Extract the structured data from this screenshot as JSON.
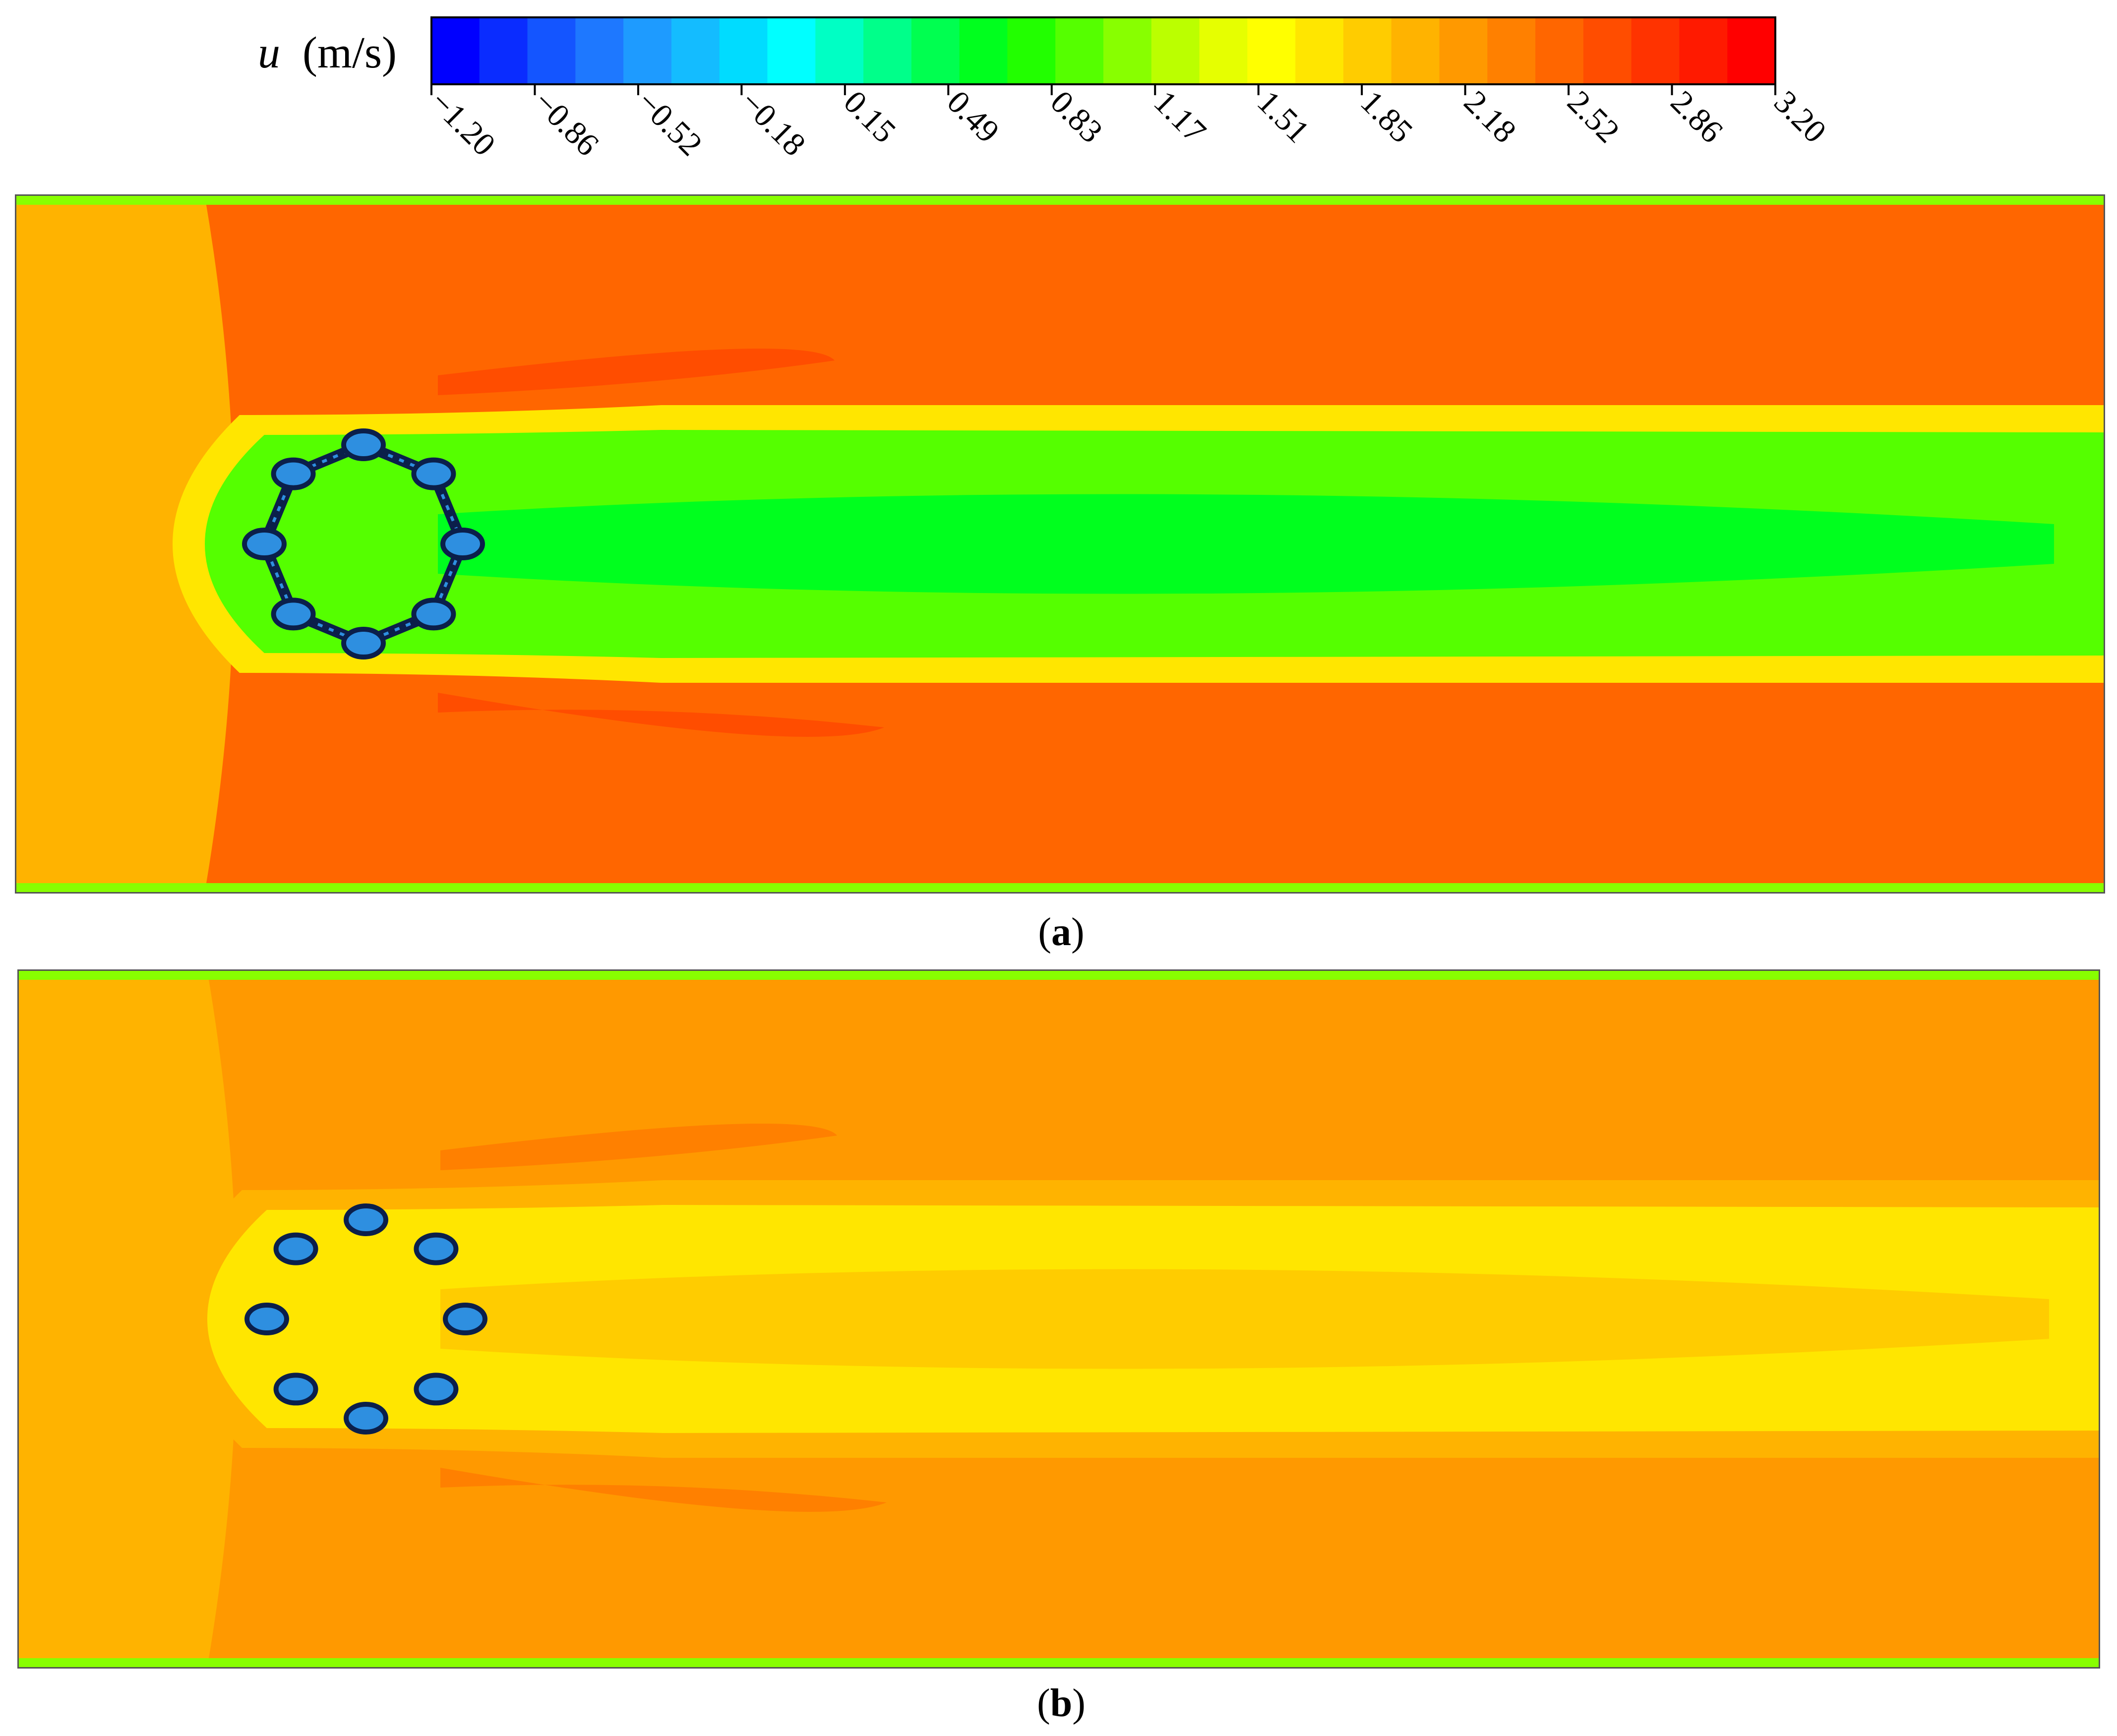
{
  "chart_data": {
    "type": "heatmap",
    "colorbar": {
      "variable": "u",
      "unit": "(m/s)",
      "ticks": [
        "-1.20",
        "-0.86",
        "-0.52",
        "-0.18",
        "0.15",
        "0.49",
        "0.83",
        "1.17",
        "1.51",
        "1.85",
        "2.18",
        "2.52",
        "2.86",
        "3.20"
      ],
      "range": [
        -1.2,
        3.2
      ],
      "colors": [
        "#0000ff",
        "#0a2cff",
        "#1455ff",
        "#1e78ff",
        "#1e9bff",
        "#14bcff",
        "#00dcff",
        "#00ffff",
        "#00ffc4",
        "#00ff8a",
        "#00ff50",
        "#00ff1e",
        "#22ff00",
        "#55ff00",
        "#88ff00",
        "#bbff00",
        "#e6ff00",
        "#ffff00",
        "#ffe600",
        "#ffcc00",
        "#ffb300",
        "#ff9900",
        "#ff8000",
        "#ff6600",
        "#ff4d00",
        "#ff3300",
        "#ff1a00",
        "#ff0000"
      ]
    },
    "panels": [
      {
        "label": "a",
        "freestream_u": 2.05,
        "wall_u": 1.1,
        "outer_wake_u": 2.45,
        "wake_core_u": 0.95,
        "wake_center_u": 0.55,
        "shear_layer_u": 1.75,
        "peak_side_u": 2.6,
        "structure": "connected-ring",
        "cylinder_count": 8
      },
      {
        "label": "b",
        "freestream_u": 2.1,
        "wall_u": 1.15,
        "outer_wake_u": 2.25,
        "wake_core_u": 1.7,
        "wake_center_u": 1.85,
        "shear_layer_u": 2.0,
        "peak_side_u": 2.3,
        "structure": "separate-cylinders",
        "cylinder_count": 8
      }
    ]
  },
  "captions": {
    "a": {
      "open": "(",
      "letter": "a",
      "close": ")"
    },
    "b": {
      "open": "(",
      "letter": "b",
      "close": ")"
    }
  },
  "colors": {
    "structure_dark": "#0b1f4a",
    "structure_light": "#2e8fe0"
  }
}
